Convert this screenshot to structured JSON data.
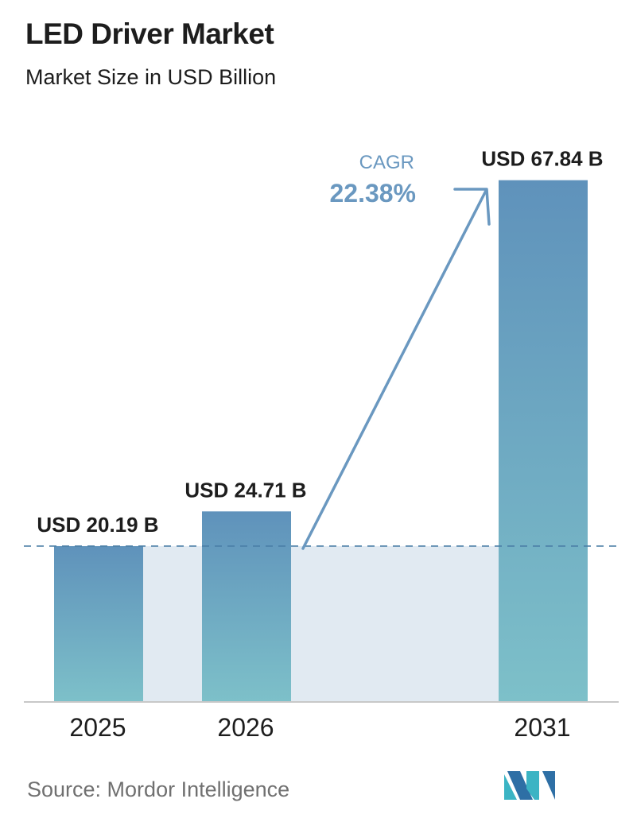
{
  "chart_data": {
    "type": "bar",
    "title": "LED Driver Market",
    "subtitle": "Market Size in USD Billion",
    "categories": [
      "2025",
      "2026",
      "2031"
    ],
    "values": [
      20.19,
      24.71,
      67.84
    ],
    "value_labels": [
      "USD 20.19 B",
      "USD 24.71 B",
      "USD 67.84 B"
    ],
    "unit": "USD Billion",
    "cagr_label": "CAGR",
    "cagr_value": "22.38%",
    "source": "Source:  Mordor Intelligence",
    "bar_color_top": "#5f92bb",
    "bar_color_bottom": "#7dc0c9",
    "band_color": "#e1eaf2",
    "arrow_color": "#6a98c0",
    "gridlines": false,
    "legend": "none"
  }
}
